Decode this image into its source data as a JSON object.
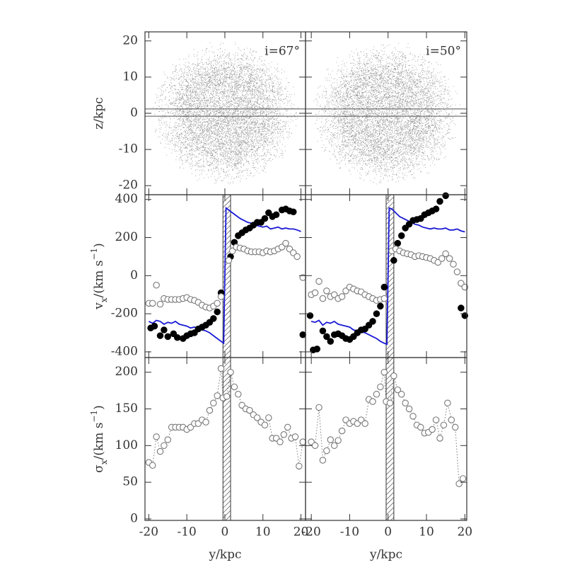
{
  "chart_data": [
    {
      "type": "particles",
      "xlim": [
        -21,
        21.2
      ],
      "ylim": [
        -22.5,
        22.5
      ],
      "yticks": [
        -20,
        -10,
        0,
        10,
        20
      ],
      "ylabel": [
        {
          "text": "z/kpc"
        }
      ],
      "annotation": "i=67°",
      "slit_z": [
        -0.8,
        1.2
      ],
      "color": "#999999"
    },
    {
      "type": "particles",
      "xlim": [
        -21.5,
        20.5
      ],
      "ylim": [
        -22.5,
        22.5
      ],
      "annotation": "i=50°",
      "slit_z": [
        -0.8,
        1.2
      ],
      "color": "#999999"
    },
    {
      "type": "velocity",
      "xlim": [
        -21,
        21.2
      ],
      "ylim": [
        -430,
        425
      ],
      "yticks": [
        -400,
        -200,
        0,
        200,
        400
      ],
      "ylabel": [
        {
          "text": "v"
        },
        {
          "text": "x",
          "sub": true
        },
        {
          "text": "/(km s"
        },
        {
          "text": "−1",
          "sup": true
        },
        {
          "text": ")"
        }
      ],
      "mask_x": [
        -0.5,
        1.5
      ],
      "series": [
        {
          "marker": "none",
          "color": "#1a1ad6",
          "x": [
            -20,
            -19,
            -18,
            -17,
            -16,
            -15,
            -14,
            -13,
            -12,
            -11,
            -10,
            -9,
            -8,
            -7,
            -6,
            -5,
            -4,
            -3,
            -2,
            -1,
            -0.3,
            0.3,
            1,
            2,
            3,
            4,
            5,
            6,
            7,
            8,
            9,
            10,
            11,
            12,
            13,
            14,
            15,
            16,
            17,
            18,
            19,
            20
          ],
          "values": [
            -240,
            -250,
            -235,
            -240,
            -255,
            -245,
            -250,
            -240,
            -255,
            -260,
            -265,
            -275,
            -270,
            -280,
            -285,
            -290,
            -300,
            -315,
            -330,
            -345,
            -355,
            355,
            345,
            330,
            315,
            300,
            290,
            280,
            275,
            265,
            260,
            255,
            260,
            245,
            250,
            255,
            245,
            250,
            245,
            245,
            240,
            232
          ]
        },
        {
          "marker": "filled",
          "color": "#000000",
          "x": [
            -19.5,
            -18.5,
            -17,
            -16,
            -15,
            -13.5,
            -12.5,
            -11,
            -10,
            -9,
            -8,
            -7,
            -6,
            -5,
            -4,
            -3,
            -2,
            -1,
            1.5,
            2.5,
            3.5,
            4.5,
            5.5,
            6.5,
            7.5,
            8.5,
            9.5,
            10.5,
            11.5,
            12.5,
            13.5,
            15,
            16,
            17,
            18,
            20.5
          ],
          "values": [
            -275,
            -265,
            -315,
            -285,
            -320,
            -305,
            -325,
            -330,
            -315,
            -305,
            -300,
            -280,
            -270,
            -260,
            -245,
            -225,
            -190,
            -90,
            100,
            175,
            210,
            225,
            240,
            250,
            265,
            280,
            280,
            300,
            330,
            310,
            320,
            345,
            350,
            340,
            335,
            -310
          ]
        },
        {
          "marker": "open",
          "color": "#777777",
          "x": [
            -20,
            -19,
            -18,
            -17,
            -16,
            -15,
            -14,
            -13,
            -12,
            -11,
            -10,
            -9,
            -8,
            -7,
            -6,
            -5,
            -4,
            -3,
            -2,
            -1,
            1,
            2,
            3,
            4,
            5,
            6,
            7,
            8,
            9,
            10,
            11,
            12,
            13,
            14,
            15,
            16,
            17,
            18,
            19,
            20.5
          ],
          "values": [
            -145,
            -145,
            -50,
            -150,
            -120,
            -125,
            -125,
            -125,
            -125,
            -120,
            -115,
            -125,
            -130,
            -140,
            -155,
            -165,
            -170,
            -160,
            -145,
            -110,
            80,
            130,
            150,
            145,
            140,
            130,
            125,
            125,
            125,
            120,
            130,
            125,
            130,
            140,
            150,
            170,
            140,
            120,
            100,
            -10
          ]
        }
      ]
    },
    {
      "type": "velocity",
      "xlim": [
        -21.5,
        20.5
      ],
      "ylim": [
        -430,
        425
      ],
      "mask_x": [
        -0.5,
        1.5
      ],
      "series": [
        {
          "marker": "none",
          "color": "#1a1ad6",
          "x": [
            -20,
            -19,
            -18,
            -17,
            -16,
            -15,
            -14,
            -13,
            -12,
            -11,
            -10,
            -9,
            -8,
            -7,
            -6,
            -5,
            -4,
            -3,
            -2,
            -1,
            -0.3,
            0.3,
            1,
            2,
            3,
            4,
            5,
            6,
            7,
            8,
            9,
            10,
            11,
            12,
            13,
            14,
            15,
            16,
            17,
            18,
            19,
            20
          ],
          "values": [
            -240,
            -245,
            -235,
            -260,
            -245,
            -250,
            -240,
            -255,
            -260,
            -265,
            -270,
            -285,
            -290,
            -295,
            -300,
            -310,
            -320,
            -330,
            -345,
            -355,
            -360,
            355,
            350,
            330,
            310,
            300,
            290,
            280,
            270,
            265,
            255,
            250,
            245,
            250,
            245,
            245,
            250,
            240,
            240,
            245,
            235,
            230
          ]
        },
        {
          "marker": "filled",
          "color": "#000000",
          "x": [
            -20.3,
            -19.5,
            -18.5,
            -17,
            -16,
            -15,
            -14,
            -13,
            -12,
            -11,
            -10,
            -9,
            -8,
            -7,
            -6,
            -5,
            -4,
            -3,
            -2,
            -1,
            1.5,
            2.5,
            3.5,
            4.5,
            5.5,
            6.5,
            7.5,
            8.5,
            9.5,
            10.5,
            11.5,
            12.5,
            13.5,
            15,
            19,
            20
          ],
          "values": [
            -210,
            -390,
            -385,
            -290,
            -320,
            -345,
            -310,
            -305,
            -315,
            -330,
            -335,
            -320,
            -300,
            -285,
            -280,
            -260,
            -240,
            -200,
            -160,
            -60,
            80,
            170,
            210,
            250,
            270,
            290,
            295,
            300,
            320,
            330,
            340,
            350,
            390,
            420,
            -170,
            -210
          ]
        },
        {
          "marker": "open",
          "color": "#777777",
          "x": [
            -20,
            -19,
            -18,
            -17,
            -16,
            -15,
            -14,
            -13,
            -12,
            -11,
            -10,
            -9,
            -8,
            -7,
            -6,
            -5,
            -4,
            -3,
            -2,
            -1,
            1,
            2,
            3,
            4,
            5,
            6,
            7,
            8,
            9,
            10,
            11,
            12,
            13,
            14,
            15,
            16,
            17,
            18,
            19,
            20
          ],
          "values": [
            -100,
            -90,
            -30,
            -120,
            -80,
            -110,
            -100,
            -120,
            -110,
            -80,
            -60,
            -70,
            -80,
            -85,
            -100,
            -110,
            -120,
            -130,
            -125,
            -120,
            130,
            140,
            130,
            120,
            115,
            110,
            100,
            105,
            100,
            95,
            90,
            80,
            70,
            90,
            115,
            90,
            60,
            20,
            -40,
            -60
          ]
        }
      ]
    },
    {
      "type": "dispersion",
      "xlim": [
        -21,
        21.2
      ],
      "ylim": [
        -2,
        220
      ],
      "yticks": [
        0,
        50,
        100,
        150,
        200
      ],
      "xticks": [
        -20,
        -10,
        0,
        10,
        20
      ],
      "ylabel": [
        {
          "text": "σ"
        },
        {
          "text": "x",
          "sub": true
        },
        {
          "text": "/(km s"
        },
        {
          "text": "−1",
          "sup": true
        },
        {
          "text": ")"
        }
      ],
      "xlabel": "y/kpc",
      "mask_x": [
        -0.5,
        1.5
      ],
      "series": [
        {
          "marker": "open",
          "line": "dotted",
          "color": "#777777",
          "x": [
            -20,
            -19,
            -18,
            -17,
            -16,
            -15,
            -14,
            -13,
            -12,
            -11,
            -10,
            -9,
            -8,
            -7,
            -6,
            -5,
            -4,
            -3,
            -2,
            -1,
            -0.5,
            0.5,
            1.5,
            2.5,
            3.5,
            4.5,
            5.5,
            6.5,
            7.5,
            8.5,
            9.5,
            10.5,
            11.5,
            12.5,
            13.5,
            14.5,
            15.5,
            16.5,
            17.5,
            18.5,
            19.5,
            20.5
          ],
          "values": [
            77,
            73,
            112,
            92,
            100,
            108,
            125,
            125,
            125,
            125,
            122,
            125,
            130,
            130,
            135,
            132,
            148,
            158,
            168,
            205,
            165,
            167,
            200,
            180,
            170,
            155,
            150,
            148,
            142,
            138,
            132,
            128,
            138,
            110,
            110,
            105,
            115,
            125,
            110,
            112,
            72,
            105
          ]
        }
      ]
    },
    {
      "type": "dispersion",
      "xlim": [
        -21.5,
        20.5
      ],
      "ylim": [
        -2,
        220
      ],
      "xticks": [
        -20,
        -10,
        0,
        10,
        20
      ],
      "xlabel": "y/kpc",
      "mask_x": [
        -0.5,
        1.5
      ],
      "series": [
        {
          "marker": "open",
          "line": "dotted",
          "color": "#777777",
          "x": [
            -20,
            -19,
            -18,
            -17,
            -16,
            -15,
            -14,
            -13,
            -12,
            -11,
            -10,
            -9,
            -8,
            -7,
            -6,
            -5,
            -4,
            -3,
            -2,
            -1,
            -0.5,
            0.5,
            1.5,
            2.5,
            3.5,
            4.5,
            5.5,
            6.5,
            7.5,
            8.5,
            9.5,
            10.5,
            11.5,
            12.5,
            13.5,
            14.5,
            15.5,
            16.5,
            17.5,
            18.5,
            19.5
          ],
          "values": [
            105,
            100,
            152,
            80,
            93,
            108,
            100,
            107,
            120,
            135,
            130,
            133,
            130,
            135,
            130,
            163,
            160,
            170,
            180,
            200,
            160,
            158,
            195,
            176,
            170,
            158,
            150,
            140,
            128,
            125,
            117,
            118,
            122,
            135,
            110,
            128,
            158,
            135,
            125,
            48,
            55
          ]
        }
      ]
    }
  ]
}
